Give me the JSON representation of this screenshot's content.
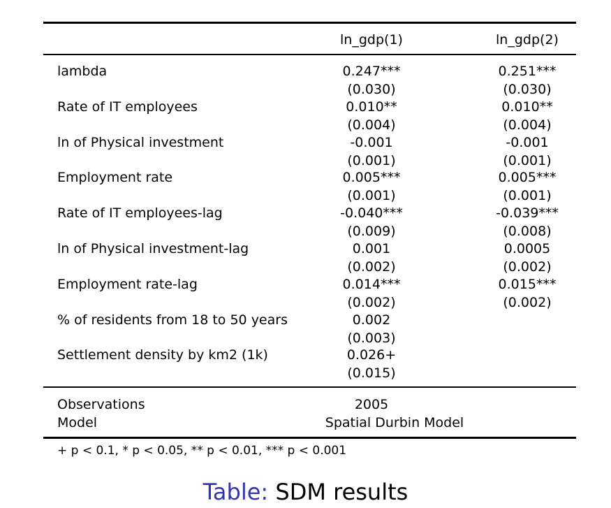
{
  "table": {
    "col1_header": "ln_gdp(1)",
    "col2_header": "ln_gdp(2)",
    "rows": [
      {
        "label": "lambda",
        "c1": "0.247***",
        "c1_se": "(0.030)",
        "c2": "0.251***",
        "c2_se": "(0.030)"
      },
      {
        "label": "Rate of IT employees",
        "c1": "0.010**",
        "c1_se": "(0.004)",
        "c2": "0.010**",
        "c2_se": "(0.004)"
      },
      {
        "label": "ln of Physical investment",
        "c1": "-0.001",
        "c1_se": "(0.001)",
        "c2": "-0.001",
        "c2_se": "(0.001)"
      },
      {
        "label": "Employment rate",
        "c1": "0.005***",
        "c1_se": "(0.001)",
        "c2": "0.005***",
        "c2_se": "(0.001)"
      },
      {
        "label": "Rate of IT employees-lag",
        "c1": "-0.040***",
        "c1_se": "(0.009)",
        "c2": "-0.039***",
        "c2_se": "(0.008)"
      },
      {
        "label": "ln of Physical investment-lag",
        "c1": "0.001",
        "c1_se": "(0.002)",
        "c2": "0.0005",
        "c2_se": "(0.002)"
      },
      {
        "label": "Employment rate-lag",
        "c1": "0.014***",
        "c1_se": "(0.002)",
        "c2": "0.015***",
        "c2_se": "(0.002)"
      },
      {
        "label": "% of residents from 18 to 50 years",
        "c1": "0.002",
        "c1_se": "(0.003)",
        "c2": "",
        "c2_se": ""
      },
      {
        "label": "Settlement density by km2 (1k)",
        "c1": "0.026+",
        "c1_se": "(0.015)",
        "c2": "",
        "c2_se": ""
      }
    ],
    "observations_label": "Observations",
    "observations_value": "2005",
    "model_label": "Model",
    "model_value": "Spatial Durbin Model",
    "notes": "+ p < 0.1, * p < 0.05, ** p < 0.01, *** p < 0.001"
  },
  "caption": {
    "tag": "Table:",
    "text": "SDM results"
  },
  "colors": {
    "caption_tag": "#3333b3"
  }
}
